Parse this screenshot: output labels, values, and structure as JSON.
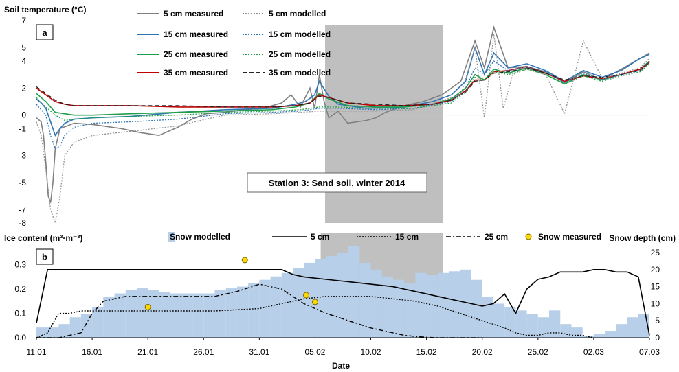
{
  "chart_data": [
    {
      "panel": "a",
      "type": "line",
      "ylabel": "Soil temperature (°C)",
      "ylim": [
        -8,
        7
      ],
      "yticks": [
        -8,
        -7,
        -5,
        -3,
        -1,
        0,
        2,
        4,
        5,
        7
      ],
      "annotation": "Station 3: Sand soil, winter 2014",
      "legend": [
        {
          "label": "5 cm measured",
          "color": "#808080",
          "dash": "solid"
        },
        {
          "label": "15 cm measured",
          "color": "#2e75b6",
          "dash": "solid"
        },
        {
          "label": "25 cm measured",
          "color": "#1f9e4a",
          "dash": "solid"
        },
        {
          "label": "35 cm measured",
          "color": "#c00000",
          "dash": "solid"
        },
        {
          "label": "5 cm modelled",
          "color": "#909090",
          "dash": "dotted"
        },
        {
          "label": "15 cm modelled",
          "color": "#2e75b6",
          "dash": "dotted"
        },
        {
          "label": "25 cm modelled",
          "color": "#1f9e4a",
          "dash": "dotted"
        },
        {
          "label": "35 cm modelled",
          "color": "#222222",
          "dash": "dashed"
        }
      ],
      "series": [
        {
          "name": "5 cm measured",
          "color": "#808080",
          "dash": "solid",
          "x": [
            0,
            1,
            1.5,
            2,
            2.5,
            3,
            3.5,
            4,
            5,
            8,
            12,
            18,
            22,
            26,
            30,
            33,
            36,
            40,
            44,
            48,
            52,
            54,
            56,
            58,
            59,
            60,
            61,
            62,
            64,
            66,
            70,
            72,
            74,
            78,
            82,
            86,
            90,
            93,
            95,
            97,
            100,
            104,
            108,
            112,
            116,
            120,
            124,
            130
          ],
          "y": [
            -0.2,
            -0.5,
            -1.5,
            -3.5,
            -6,
            -6.5,
            -5,
            -2.5,
            -1,
            -0.6,
            -0.7,
            -1,
            -1.3,
            -1.5,
            -0.9,
            -0.3,
            0.1,
            0.2,
            0.4,
            0.5,
            0.9,
            1.5,
            0.6,
            2,
            0.5,
            3,
            1,
            -0.2,
            0.3,
            -0.6,
            -0.4,
            -0.2,
            0.2,
            0.7,
            1,
            1.5,
            2.5,
            5.5,
            3.5,
            6.5,
            3.5,
            3.6,
            3.2,
            2.4,
            3.2,
            2.6,
            3.4,
            4.6
          ]
        },
        {
          "name": "15 cm measured",
          "color": "#2e75b6",
          "dash": "solid",
          "x": [
            0,
            1,
            2,
            3,
            4,
            5,
            6,
            8,
            12,
            20,
            30,
            35,
            40,
            50,
            55,
            57,
            59,
            60,
            62,
            64,
            70,
            78,
            84,
            88,
            91,
            93,
            95,
            97,
            100,
            104,
            108,
            112,
            116,
            120,
            124,
            128,
            130
          ],
          "y": [
            1.2,
            0.9,
            0.5,
            -0.5,
            -1.5,
            -1,
            -0.6,
            -0.3,
            -0.2,
            -0.1,
            0.2,
            0.3,
            0.4,
            0.5,
            0.8,
            1,
            1.5,
            2.5,
            1.4,
            0.8,
            0.5,
            0.6,
            1,
            1.5,
            2.5,
            5,
            3,
            4.6,
            3.5,
            3.8,
            3.3,
            2.5,
            3.3,
            2.8,
            3.3,
            4.2,
            4.5
          ]
        },
        {
          "name": "25 cm measured",
          "color": "#1f9e4a",
          "dash": "solid",
          "x": [
            0,
            2,
            4,
            6,
            8,
            12,
            20,
            30,
            40,
            50,
            55,
            58,
            60,
            62,
            66,
            72,
            78,
            84,
            88,
            91,
            93,
            95,
            97,
            100,
            104,
            108,
            112,
            116,
            120,
            124,
            128,
            130
          ],
          "y": [
            1.6,
            1,
            0.2,
            0.1,
            0,
            0,
            0.1,
            0.2,
            0.3,
            0.4,
            0.6,
            0.9,
            1.6,
            1.2,
            0.7,
            0.6,
            0.6,
            0.8,
            1.2,
            2,
            3,
            2.6,
            3.4,
            3.1,
            3.5,
            3,
            2.3,
            3,
            2.6,
            3,
            3.4,
            4
          ]
        },
        {
          "name": "35 cm measured",
          "color": "#c00000",
          "dash": "solid",
          "x": [
            0,
            2,
            4,
            6,
            8,
            10,
            20,
            30,
            40,
            50,
            55,
            58,
            60,
            62,
            66,
            72,
            78,
            84,
            88,
            91,
            93,
            95,
            97,
            100,
            104,
            108,
            112,
            116,
            120,
            124,
            128,
            130
          ],
          "y": [
            2,
            1.5,
            1,
            0.8,
            0.7,
            0.7,
            0.7,
            0.6,
            0.6,
            0.6,
            0.7,
            0.9,
            1.5,
            1.3,
            0.9,
            0.7,
            0.7,
            0.8,
            1.1,
            1.8,
            2.6,
            2.6,
            3.2,
            3.3,
            3.6,
            3.1,
            2.5,
            2.9,
            2.7,
            3,
            3.4,
            3.9
          ]
        },
        {
          "name": "35 cm modelled",
          "color": "#222222",
          "dash": "dashed",
          "x": [
            0,
            2,
            4,
            6,
            8,
            10,
            20,
            30,
            40,
            50,
            55,
            58,
            60,
            62,
            66,
            72,
            78,
            84,
            88,
            91,
            93,
            95,
            97,
            100,
            104,
            108,
            112,
            116,
            120,
            124,
            128,
            130
          ],
          "y": [
            2.1,
            1.6,
            1.1,
            0.8,
            0.7,
            0.7,
            0.7,
            0.7,
            0.6,
            0.6,
            0.7,
            0.9,
            1.4,
            1.3,
            0.9,
            0.8,
            0.7,
            0.8,
            1.1,
            1.7,
            2.5,
            2.6,
            3.1,
            3.2,
            3.5,
            3.1,
            2.6,
            2.9,
            2.8,
            3,
            3.3,
            3.9
          ]
        },
        {
          "name": "5 cm modelled",
          "color": "#909090",
          "dash": "dotted",
          "x": [
            0,
            1,
            2,
            3,
            4,
            5,
            6,
            8,
            12,
            20,
            30,
            36,
            40,
            50,
            56,
            60,
            64,
            72,
            80,
            90,
            93,
            95,
            97,
            99,
            101,
            104,
            108,
            112,
            116,
            120,
            124,
            128,
            130
          ],
          "y": [
            -0.5,
            -1.5,
            -4,
            -7,
            -8,
            -6,
            -3,
            -2,
            -1.5,
            -1.2,
            -0.8,
            -0.3,
            0,
            0.1,
            0.2,
            0.3,
            0.3,
            0.3,
            0.4,
            1.5,
            5,
            -0.2,
            6,
            0.5,
            3,
            3.4,
            3,
            0.1,
            5.5,
            2.7,
            3.1,
            3.5,
            4.2
          ]
        },
        {
          "name": "15 cm modelled",
          "color": "#2e75b6",
          "dash": "dotted",
          "x": [
            0,
            2,
            3,
            4,
            5,
            6,
            8,
            12,
            20,
            30,
            40,
            50,
            56,
            60,
            64,
            72,
            80,
            88,
            91,
            93,
            95,
            97,
            100,
            104,
            108,
            112,
            116,
            120,
            124,
            128,
            130
          ],
          "y": [
            0.8,
            0,
            -1.5,
            -2.5,
            -2.3,
            -1.5,
            -0.9,
            -0.6,
            -0.5,
            -0.3,
            0.1,
            0.2,
            0.3,
            0.5,
            0.5,
            0.4,
            0.5,
            1,
            2,
            3.5,
            3,
            4,
            3.3,
            3.6,
            3.2,
            2.4,
            3.1,
            2.6,
            3,
            3.3,
            4
          ]
        },
        {
          "name": "25 cm modelled",
          "color": "#1f9e4a",
          "dash": "dotted",
          "x": [
            0,
            2,
            4,
            6,
            8,
            12,
            20,
            30,
            40,
            50,
            56,
            60,
            64,
            72,
            80,
            88,
            91,
            93,
            95,
            97,
            100,
            104,
            108,
            112,
            116,
            120,
            124,
            128,
            130
          ],
          "y": [
            1.3,
            0.6,
            0,
            -0.4,
            -0.3,
            -0.2,
            -0.1,
            0,
            0.2,
            0.3,
            0.4,
            0.6,
            0.6,
            0.5,
            0.5,
            0.9,
            1.7,
            2.8,
            2.6,
            3.2,
            3,
            3.4,
            3,
            2.3,
            2.9,
            2.5,
            2.9,
            3.2,
            3.8
          ]
        }
      ]
    },
    {
      "panel": "b",
      "type": "line",
      "xlabel": "Date",
      "ylabel": "Ice content (m³·m⁻³)",
      "ylabel_right": "Snow depth (cm)",
      "xticks": [
        "11.01",
        "16.01",
        "21.01",
        "26.01",
        "31.01",
        "05.02",
        "10.02",
        "15.02",
        "20.02",
        "25.02",
        "02.03",
        "07.03"
      ],
      "ylim": [
        0,
        0.35
      ],
      "yticks": [
        "0.0",
        "0.1",
        "0.2",
        "0.3"
      ],
      "ylim_right": [
        0,
        25
      ],
      "yticks_right": [
        "0",
        "5",
        "10",
        "15",
        "20",
        "25"
      ],
      "legend": [
        {
          "label": "Snow modelled",
          "kind": "bar",
          "color": "#b7cfe8"
        },
        {
          "label": "5 cm",
          "kind": "line",
          "dash": "solid"
        },
        {
          "label": "15 cm",
          "kind": "line",
          "dash": "dotted"
        },
        {
          "label": "25 cm",
          "kind": "line",
          "dash": "dashdot"
        },
        {
          "label": "Snow measured",
          "kind": "marker",
          "color": "#ffd800"
        }
      ],
      "shaded_period_days": [
        25.5,
        36.5
      ],
      "snow_modelled_cm": {
        "x": [
          0,
          1,
          2,
          3,
          4,
          5,
          6,
          7,
          8,
          9,
          10,
          11,
          12,
          13,
          14,
          15,
          16,
          17,
          18,
          19,
          20,
          21,
          22,
          23,
          24,
          25,
          26,
          27,
          28,
          29,
          30,
          31,
          32,
          33,
          34,
          35,
          36,
          37,
          38,
          39,
          40,
          41,
          42,
          43,
          44,
          45,
          46,
          47,
          48,
          49,
          50,
          51,
          52,
          53,
          54,
          55
        ],
        "y": [
          3,
          3,
          4,
          6,
          7,
          9,
          12,
          13,
          14,
          14.5,
          14,
          13.5,
          13,
          13,
          13,
          13,
          14,
          14.5,
          15,
          16,
          17,
          18,
          19,
          20.5,
          22,
          23,
          24,
          25,
          27,
          22,
          20,
          18,
          17,
          16,
          19,
          18.5,
          19,
          19.5,
          20,
          17,
          12,
          10,
          9,
          8,
          7,
          6,
          8,
          4,
          3,
          0.5,
          1,
          2,
          4,
          6,
          7,
          0
        ]
      },
      "snow_measured_cm": [
        {
          "x": 10,
          "y": 9
        },
        {
          "x": 18.7,
          "y": 22.8
        },
        {
          "x": 24.2,
          "y": 12.5
        },
        {
          "x": 25.0,
          "y": 10.5
        }
      ],
      "series": [
        {
          "name": "5 cm",
          "dash": "solid",
          "x": [
            0,
            1,
            2,
            3,
            4,
            5,
            6,
            8,
            12,
            16,
            20,
            22,
            23,
            24,
            26,
            28,
            30,
            32,
            33,
            34,
            35,
            36,
            37,
            38,
            39,
            40,
            41,
            42,
            43,
            44,
            45,
            46,
            47,
            48,
            49,
            50,
            51,
            52,
            53,
            54,
            55
          ],
          "y": [
            0.06,
            0.28,
            0.28,
            0.28,
            0.28,
            0.28,
            0.28,
            0.28,
            0.28,
            0.28,
            0.28,
            0.28,
            0.26,
            0.25,
            0.24,
            0.23,
            0.22,
            0.21,
            0.2,
            0.19,
            0.18,
            0.17,
            0.16,
            0.15,
            0.14,
            0.13,
            0.14,
            0.18,
            0.1,
            0.2,
            0.24,
            0.25,
            0.27,
            0.27,
            0.27,
            0.28,
            0.28,
            0.27,
            0.27,
            0.25,
            0.01
          ]
        },
        {
          "name": "15 cm",
          "dash": "dotted",
          "x": [
            0,
            1,
            2,
            3,
            4,
            5,
            8,
            12,
            16,
            20,
            22,
            24,
            26,
            28,
            30,
            32,
            34,
            36,
            38,
            40,
            42,
            43,
            44,
            45,
            46,
            47,
            48,
            49,
            50
          ],
          "y": [
            0,
            0.02,
            0.1,
            0.1,
            0.11,
            0.11,
            0.11,
            0.11,
            0.11,
            0.12,
            0.14,
            0.16,
            0.17,
            0.17,
            0.17,
            0.16,
            0.15,
            0.13,
            0.1,
            0.07,
            0.04,
            0.02,
            0.01,
            0.01,
            0.02,
            0.02,
            0.01,
            0.01,
            0
          ]
        },
        {
          "name": "25 cm",
          "dash": "dashdot",
          "x": [
            0,
            2,
            4,
            5,
            6,
            8,
            12,
            16,
            18,
            20,
            22,
            24,
            26,
            28,
            30,
            32,
            33,
            34,
            35,
            36,
            38,
            40
          ],
          "y": [
            0,
            0,
            0.02,
            0.1,
            0.15,
            0.17,
            0.17,
            0.17,
            0.19,
            0.22,
            0.2,
            0.14,
            0.1,
            0.07,
            0.04,
            0.02,
            0.01,
            0.005,
            0.002,
            0,
            0,
            0
          ]
        }
      ]
    }
  ],
  "labels": {
    "panel_a_tag": "a",
    "panel_b_tag": "b"
  }
}
